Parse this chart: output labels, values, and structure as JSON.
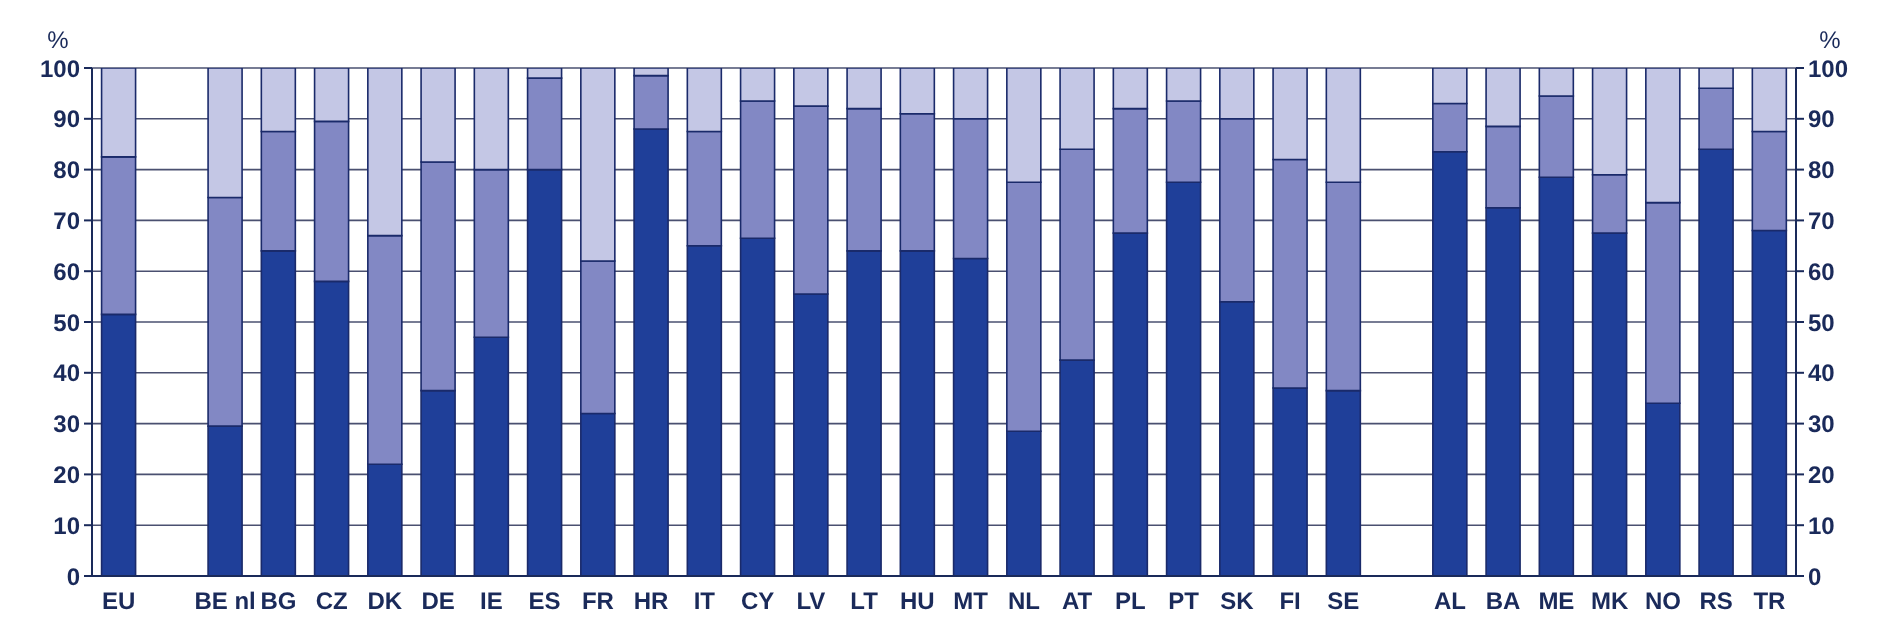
{
  "chart_data": {
    "type": "bar",
    "stacked": true,
    "ylabel": "%",
    "y2label": "%",
    "categories": [
      "EU",
      null,
      "BE nl",
      "BG",
      "CZ",
      "DK",
      "DE",
      "IE",
      "ES",
      "FR",
      "HR",
      "IT",
      "CY",
      "LV",
      "LT",
      "HU",
      "MT",
      "NL",
      "AT",
      "PL",
      "PT",
      "SK",
      "FI",
      "SE",
      null,
      "AL",
      "BA",
      "ME",
      "MK",
      "NO",
      "RS",
      "TR"
    ],
    "series": [
      {
        "color": "#1f3f99",
        "values": [
          51.5,
          null,
          29.5,
          64,
          58,
          22,
          36.5,
          47,
          80,
          32,
          88,
          65,
          66.5,
          55.5,
          64,
          64,
          62.5,
          28.5,
          42.5,
          67.5,
          77.5,
          54,
          37,
          36.5,
          null,
          83.5,
          72.5,
          78.5,
          67.5,
          34,
          84,
          68
        ]
      },
      {
        "color": "#8288c4",
        "values": [
          31,
          null,
          45,
          23.5,
          31.5,
          45,
          45,
          33,
          18,
          30,
          10.5,
          22.5,
          27,
          37,
          28,
          27,
          27.5,
          49,
          41.5,
          24.5,
          16,
          36,
          45,
          41,
          null,
          9.5,
          16,
          16,
          11.5,
          39.5,
          12,
          19.5
        ]
      },
      {
        "color": "#c4c7e5",
        "values": [
          17.5,
          null,
          25.5,
          12.5,
          10.5,
          33,
          18.5,
          20,
          2,
          38,
          1.5,
          12.5,
          6.5,
          7.5,
          8,
          9,
          10,
          22.5,
          16,
          8,
          6.5,
          10,
          18,
          22.5,
          null,
          7,
          11.5,
          5.5,
          21,
          26.5,
          4,
          12.5
        ]
      }
    ],
    "ylim": [
      0,
      100
    ],
    "yticks": [
      0,
      10,
      20,
      30,
      40,
      50,
      60,
      70,
      80,
      90,
      100
    ],
    "y2lim": [
      0,
      100
    ],
    "y2ticks": [
      0,
      10,
      20,
      30,
      40,
      50,
      60,
      70,
      80,
      90,
      100
    ],
    "grid": "y",
    "legend": false
  }
}
